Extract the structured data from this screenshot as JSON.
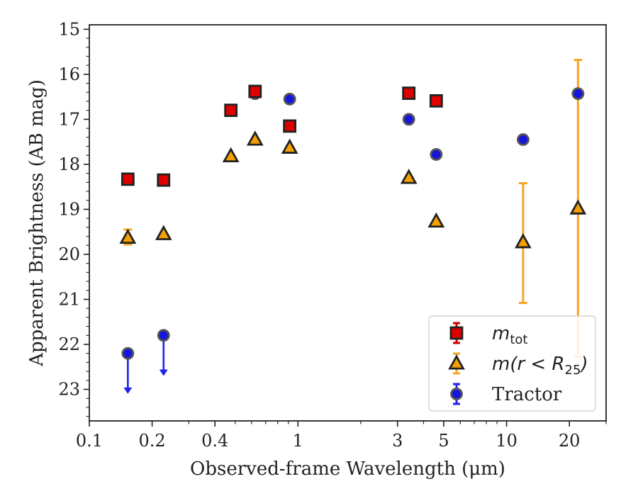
{
  "chart_data": {
    "type": "scatter",
    "xlabel": "Observed-frame Wavelength (μm)",
    "ylabel": "Apparent Brightness (AB mag)",
    "xscale": "log",
    "xlim": [
      0.1,
      30
    ],
    "ylim": [
      23.7,
      14.9
    ],
    "y_inverted": true,
    "x_ticks": [
      {
        "value": 0.1,
        "label": "0.1"
      },
      {
        "value": 0.2,
        "label": "0.2"
      },
      {
        "value": 0.4,
        "label": "0.4"
      },
      {
        "value": 1,
        "label": "1"
      },
      {
        "value": 3,
        "label": "3"
      },
      {
        "value": 5,
        "label": "5"
      },
      {
        "value": 10,
        "label": "10"
      },
      {
        "value": 20,
        "label": "20"
      }
    ],
    "x_minor_ticks": [
      0.3,
      0.5,
      0.6,
      0.7,
      0.8,
      0.9,
      2,
      4,
      6,
      7,
      8,
      9,
      30
    ],
    "y_ticks": [
      15,
      16,
      17,
      18,
      19,
      20,
      21,
      22,
      23
    ],
    "legend_position": "lower-right",
    "series": [
      {
        "name": "m_tot",
        "legend_main": "m",
        "legend_sub": "tot",
        "marker": "square",
        "face_color": "#e00000",
        "edge_color": "#222222",
        "errbar_color": "#cc0000",
        "points": [
          {
            "x": 0.153,
            "y": 18.33
          },
          {
            "x": 0.227,
            "y": 18.35
          },
          {
            "x": 0.477,
            "y": 16.8
          },
          {
            "x": 0.623,
            "y": 16.38
          },
          {
            "x": 0.913,
            "y": 17.15
          },
          {
            "x": 3.4,
            "y": 16.42
          },
          {
            "x": 4.6,
            "y": 16.59
          }
        ]
      },
      {
        "name": "m(r < R_25)",
        "legend_main": "m(r < R",
        "legend_sub": "25",
        "legend_close": ")",
        "marker": "triangle",
        "face_color": "#f5a000",
        "edge_color": "#222222",
        "errbar_color": "#f5a623",
        "points": [
          {
            "x": 0.153,
            "y": 19.63,
            "yerr": [
              19.45,
              19.78
            ]
          },
          {
            "x": 0.227,
            "y": 19.55
          },
          {
            "x": 0.477,
            "y": 17.82
          },
          {
            "x": 0.623,
            "y": 17.45
          },
          {
            "x": 0.913,
            "y": 17.63
          },
          {
            "x": 3.4,
            "y": 18.3
          },
          {
            "x": 4.6,
            "y": 19.27
          },
          {
            "x": 12,
            "y": 19.73,
            "yerr": [
              18.42,
              21.08
            ]
          },
          {
            "x": 22,
            "y": 18.98,
            "yerr": [
              15.68,
              22.28
            ]
          }
        ]
      },
      {
        "name": "Tractor",
        "marker": "circle",
        "face_color": "#1515dd",
        "edge_color": "#555555",
        "errbar_color": "#2222ee",
        "points": [
          {
            "x": 0.153,
            "y": 22.2,
            "upper_limit_to": 23.1
          },
          {
            "x": 0.227,
            "y": 21.8,
            "upper_limit_to": 22.7
          },
          {
            "x": 0.477,
            "y": 16.8
          },
          {
            "x": 0.623,
            "y": 16.43
          },
          {
            "x": 0.913,
            "y": 16.55
          },
          {
            "x": 3.4,
            "y": 17.0
          },
          {
            "x": 4.6,
            "y": 17.78
          },
          {
            "x": 12,
            "y": 17.45
          },
          {
            "x": 22,
            "y": 16.43
          }
        ]
      }
    ]
  }
}
